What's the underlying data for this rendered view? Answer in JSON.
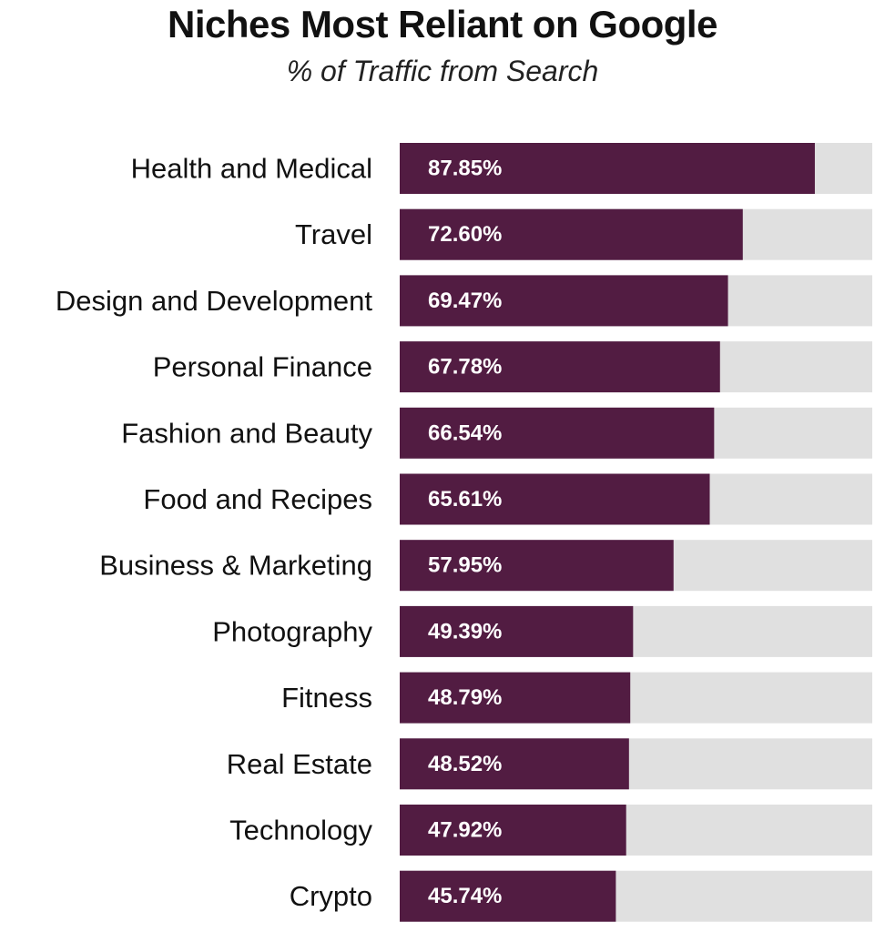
{
  "chart_data": {
    "type": "bar",
    "orientation": "horizontal",
    "title": "Niches Most Reliant on Google",
    "subtitle": "% of Traffic from Search",
    "categories": [
      "Health and Medical",
      "Travel",
      "Design and Development",
      "Personal Finance",
      "Fashion and Beauty",
      "Food and Recipes",
      "Business & Marketing",
      "Photography",
      "Fitness",
      "Real Estate",
      "Technology",
      "Crypto"
    ],
    "values": [
      87.85,
      72.6,
      69.47,
      67.78,
      66.54,
      65.61,
      57.95,
      49.39,
      48.79,
      48.52,
      47.92,
      45.74
    ],
    "value_labels": [
      "87.85%",
      "72.60%",
      "69.47%",
      "67.78%",
      "66.54%",
      "65.61%",
      "57.95%",
      "49.39%",
      "48.79%",
      "48.52%",
      "47.92%",
      "45.74%"
    ],
    "xlim": [
      0,
      100
    ],
    "xlabel": "",
    "ylabel": "",
    "grid": false,
    "legend": "none",
    "colors": {
      "bar": "#521c42",
      "track": "#e0e0e0",
      "value_text": "#ffffff",
      "label_text": "#111111"
    }
  }
}
